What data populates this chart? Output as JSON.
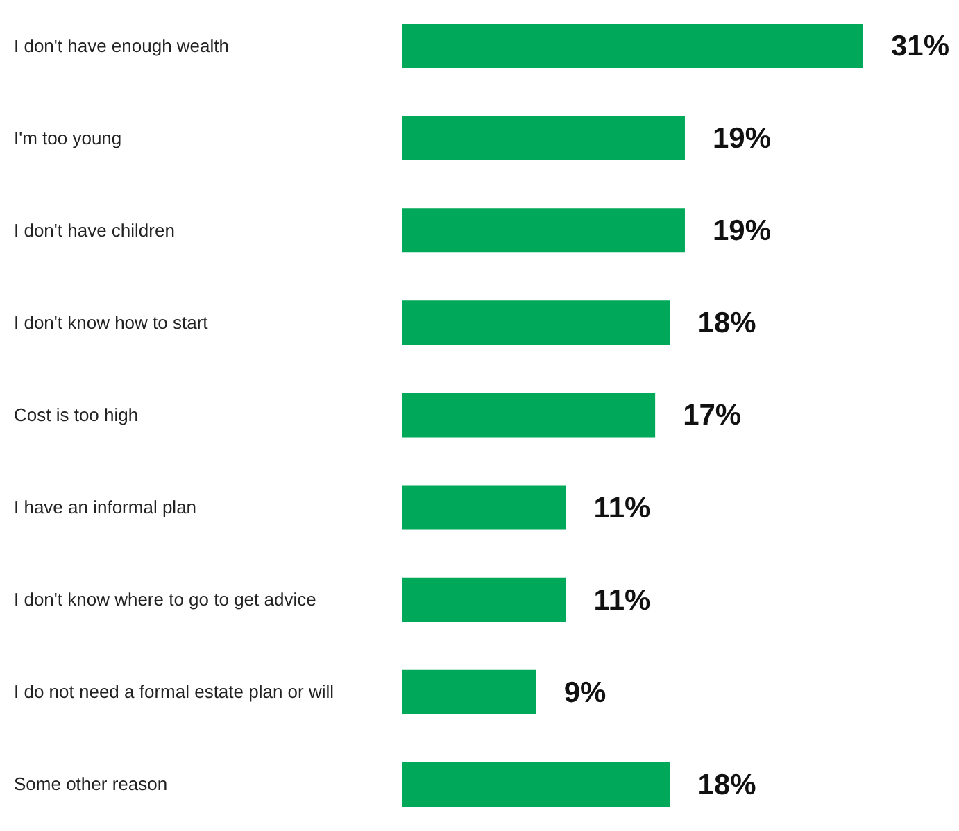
{
  "chart_data": {
    "type": "bar",
    "orientation": "horizontal",
    "categories": [
      "I don't have enough wealth",
      "I'm too young",
      "I don't have children",
      "I don't know how to start",
      "Cost is too high",
      "I have an informal plan",
      "I don't know where to go to get advice",
      "I do not need a formal estate plan or will",
      "Some other reason"
    ],
    "values": [
      31,
      19,
      19,
      18,
      17,
      11,
      11,
      9,
      18
    ],
    "value_labels": [
      "31%",
      "19%",
      "19%",
      "18%",
      "17%",
      "11%",
      "11%",
      "9%",
      "18%"
    ],
    "color": "#00a859"
  }
}
